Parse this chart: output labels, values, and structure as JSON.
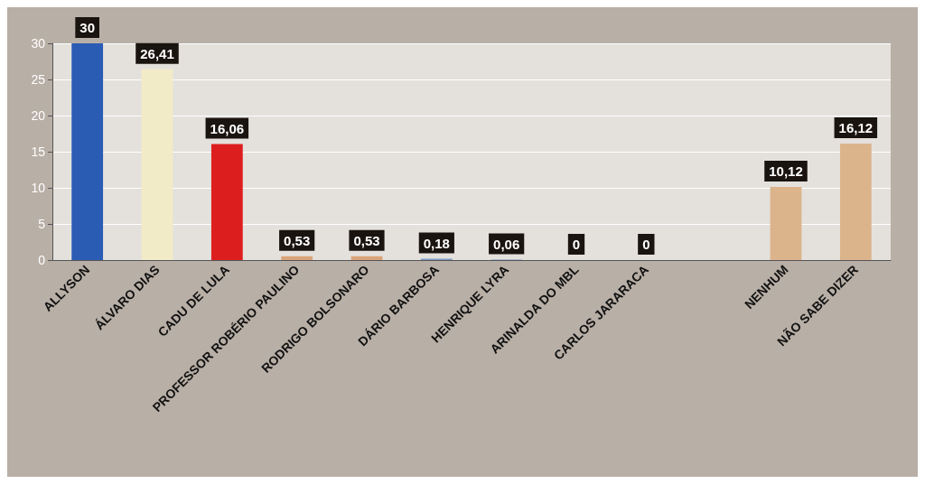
{
  "chart_data": {
    "type": "bar",
    "categories": [
      "ALLYSON",
      "ÁLVARO DIAS",
      "CADU DE LULA",
      "PROFESSOR ROBÉRIO PAULINO",
      "RODRIGO BOLSONARO",
      "DÁRIO BARBOSA",
      "HENRIQUE LYRA",
      "ARINALDA DO MBL",
      "CARLOS JARARACA",
      null,
      "NENHUM",
      "NÃO SABE DIZER"
    ],
    "values": [
      30,
      26.41,
      16.06,
      0.53,
      0.53,
      0.18,
      0.06,
      0,
      0,
      null,
      10.12,
      16.12
    ],
    "value_labels": [
      "30",
      "26,41",
      "16,06",
      "0,53",
      "0,53",
      "0,18",
      "0,06",
      "0",
      "0",
      null,
      "10,12",
      "16,12"
    ],
    "colors": [
      "#2a5cb4",
      "#f2ebc8",
      "#dd1e1e",
      "#d9a47a",
      "#d9a47a",
      "#7a9cc8",
      "#7a9cc8",
      "#7a9cc8",
      "#d9a47a",
      "#d9a47a",
      "#dcb48c",
      "#dcb48c"
    ],
    "ylim": [
      0,
      30
    ],
    "yticks": [
      0,
      5,
      10,
      15,
      20,
      25,
      30
    ],
    "grid": "y"
  }
}
